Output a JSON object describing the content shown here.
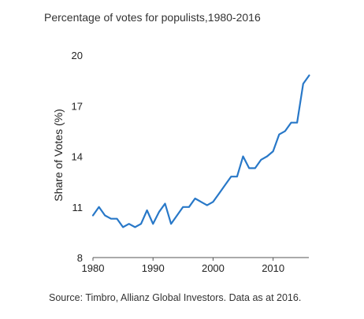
{
  "chart_data": {
    "type": "line",
    "title": "Percentage of votes for populists,1980-2016",
    "xlabel": "",
    "ylabel": "Share of Votes (%)",
    "xlim": [
      1980,
      2017
    ],
    "ylim": [
      8,
      20
    ],
    "x_ticks": [
      1980,
      1990,
      2000,
      2010
    ],
    "y_ticks": [
      8,
      11,
      14,
      17,
      20
    ],
    "grid": false,
    "source": "Source: Timbro, Allianz Global Investors. Data as at 2016.",
    "series": [
      {
        "name": "",
        "color": "#2878c8",
        "x": [
          1980,
          1981,
          1982,
          1983,
          1984,
          1985,
          1986,
          1987,
          1988,
          1989,
          1990,
          1991,
          1992,
          1993,
          1994,
          1995,
          1996,
          1997,
          1998,
          1999,
          2000,
          2001,
          2002,
          2003,
          2004,
          2005,
          2006,
          2007,
          2008,
          2009,
          2010,
          2011,
          2012,
          2013,
          2014,
          2015,
          2016
        ],
        "y": [
          10.5,
          11.0,
          10.5,
          10.3,
          10.3,
          9.8,
          10.0,
          9.8,
          10.0,
          10.8,
          10.0,
          10.7,
          11.2,
          10.0,
          10.5,
          11.0,
          11.0,
          11.5,
          11.3,
          11.1,
          11.3,
          11.8,
          12.3,
          12.8,
          12.8,
          14.0,
          13.3,
          13.3,
          13.8,
          14.0,
          14.3,
          15.3,
          15.5,
          16.0,
          16.0,
          18.3,
          18.8
        ]
      }
    ]
  }
}
